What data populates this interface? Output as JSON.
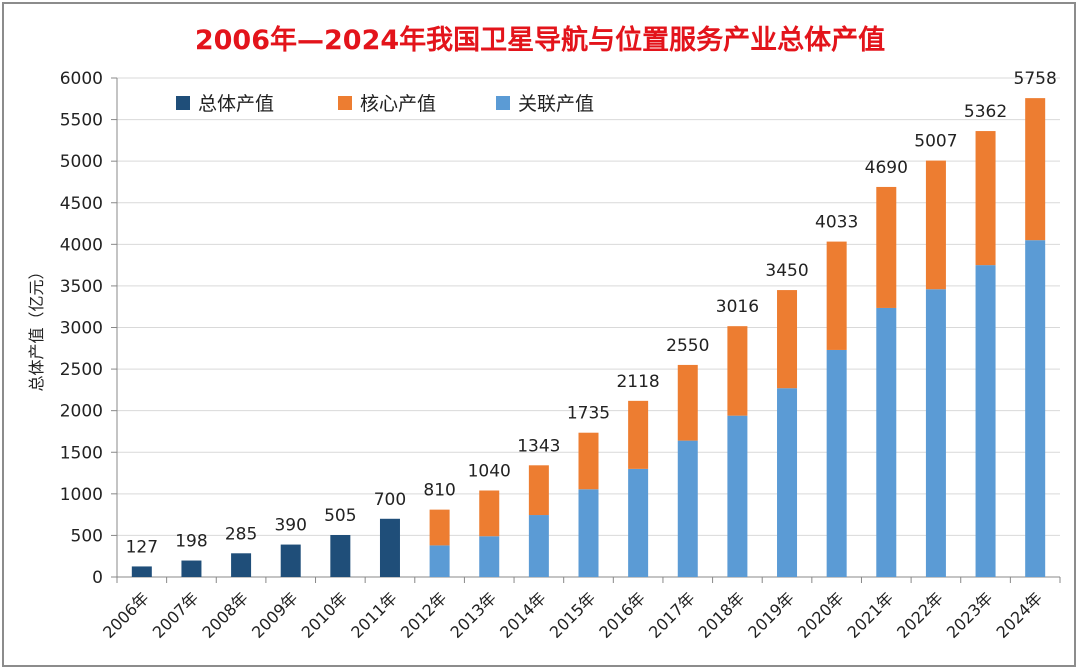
{
  "chart_data": {
    "type": "bar",
    "stacked": true,
    "title": "2006年—2024年我国卫星导航与位置服务产业总体产值",
    "ylabel": "总体产值（亿元）",
    "xlabel": "",
    "ylim": [
      0,
      6000
    ],
    "yticks": [
      0,
      500,
      1000,
      1500,
      2000,
      2500,
      3000,
      3500,
      4000,
      4500,
      5000,
      5500,
      6000
    ],
    "grid": true,
    "legend_placement": "top-left",
    "categories": [
      "2006年",
      "2007年",
      "2008年",
      "2009年",
      "2010年",
      "2011年",
      "2012年",
      "2013年",
      "2014年",
      "2015年",
      "2016年",
      "2017年",
      "2018年",
      "2019年",
      "2020年",
      "2021年",
      "2022年",
      "2023年",
      "2024年"
    ],
    "totals": [
      127,
      198,
      285,
      390,
      505,
      700,
      810,
      1040,
      1343,
      1735,
      2118,
      2550,
      3016,
      3450,
      4033,
      4690,
      5007,
      5362,
      5758
    ],
    "series": [
      {
        "name": "总体产值",
        "color": "#1f4e79",
        "values": [
          127,
          198,
          285,
          390,
          505,
          700,
          null,
          null,
          null,
          null,
          null,
          null,
          null,
          null,
          null,
          null,
          null,
          null,
          null
        ]
      },
      {
        "name": "核心产值",
        "color": "#ed7d31",
        "values": [
          null,
          null,
          null,
          null,
          null,
          null,
          430,
          550,
          598,
          680,
          818,
          910,
          1076,
          1180,
          1303,
          1455,
          1547,
          1612,
          1708
        ]
      },
      {
        "name": "关联产值",
        "color": "#5b9bd5",
        "values": [
          null,
          null,
          null,
          null,
          null,
          null,
          380,
          490,
          745,
          1055,
          1300,
          1640,
          1940,
          2270,
          2730,
          3235,
          3460,
          3750,
          4050
        ]
      }
    ]
  }
}
